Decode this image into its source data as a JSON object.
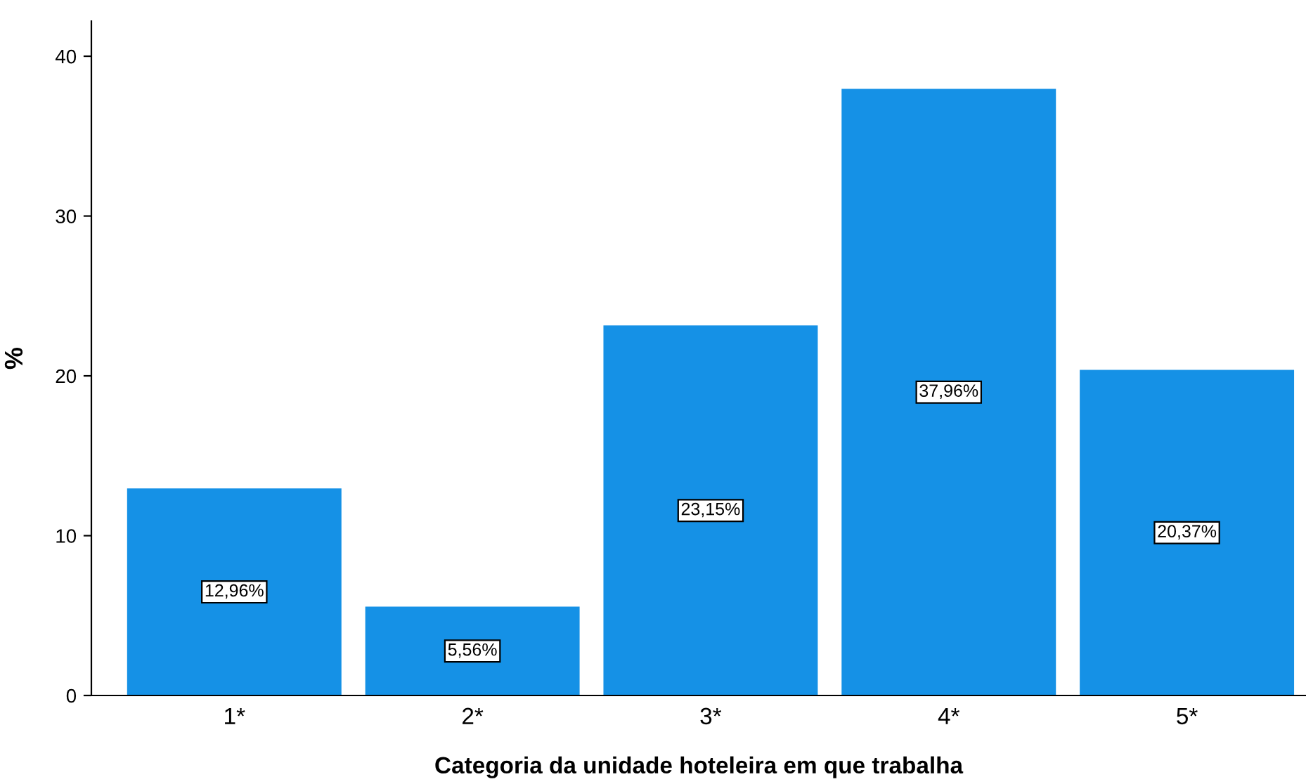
{
  "chart_data": {
    "type": "bar",
    "xlabel": "Categoria da unidade hoteleira em que trabalha",
    "ylabel": "%",
    "categories": [
      "1*",
      "2*",
      "3*",
      "4*",
      "5*"
    ],
    "values": [
      12.96,
      5.56,
      23.15,
      37.96,
      20.37
    ],
    "value_labels": [
      "12,96%",
      "5,56%",
      "23,15%",
      "37,96%",
      "20,37%"
    ],
    "color": "#1591e6",
    "ylim": [
      0,
      42.2
    ],
    "yticks": [
      0,
      10,
      20,
      30,
      40
    ],
    "grid": false,
    "legend": false
  }
}
